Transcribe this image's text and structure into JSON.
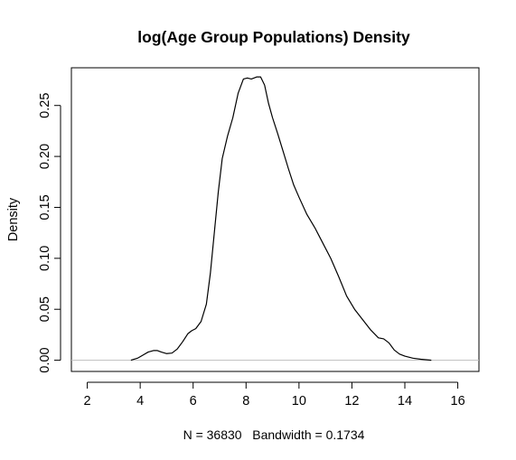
{
  "chart_data": {
    "type": "line",
    "title": "log(Age Group Populations) Density",
    "xlabel": "N = 36830   Bandwidth = 0.1734",
    "ylabel": "Density",
    "xlim": [
      1.4,
      16.8
    ],
    "ylim": [
      -0.011,
      0.287
    ],
    "x_ticks": [
      2,
      4,
      6,
      8,
      10,
      12,
      14,
      16
    ],
    "x_tick_labels": [
      "2",
      "4",
      "6",
      "8",
      "10",
      "12",
      "14",
      "16"
    ],
    "y_ticks": [
      0,
      0.05,
      0.1,
      0.15,
      0.2,
      0.25
    ],
    "y_tick_labels": [
      "0.00",
      "0.05",
      "0.10",
      "0.15",
      "0.20",
      "0.25"
    ],
    "baseline_y": 0,
    "grid": false,
    "legend": "none",
    "series": [
      {
        "x": [
          3.65,
          3.9,
          4.1,
          4.3,
          4.5,
          4.65,
          4.8,
          5.0,
          5.2,
          5.4,
          5.6,
          5.8,
          5.95,
          6.1,
          6.3,
          6.5,
          6.65,
          6.8,
          6.95,
          7.1,
          7.3,
          7.5,
          7.7,
          7.9,
          8.05,
          8.2,
          8.4,
          8.55,
          8.7,
          8.85,
          9.0,
          9.2,
          9.4,
          9.6,
          9.8,
          10.0,
          10.3,
          10.6,
          10.9,
          11.2,
          11.5,
          11.8,
          12.1,
          12.4,
          12.7,
          13.0,
          13.2,
          13.4,
          13.6,
          13.8,
          14.0,
          14.3,
          14.6,
          15.0
        ],
        "y": [
          0.0,
          0.002,
          0.005,
          0.008,
          0.0095,
          0.0095,
          0.008,
          0.0065,
          0.007,
          0.011,
          0.018,
          0.026,
          0.029,
          0.031,
          0.038,
          0.055,
          0.085,
          0.125,
          0.165,
          0.198,
          0.22,
          0.238,
          0.262,
          0.276,
          0.277,
          0.276,
          0.278,
          0.278,
          0.27,
          0.252,
          0.238,
          0.222,
          0.205,
          0.188,
          0.172,
          0.16,
          0.143,
          0.13,
          0.115,
          0.1,
          0.082,
          0.063,
          0.05,
          0.04,
          0.03,
          0.022,
          0.021,
          0.017,
          0.01,
          0.006,
          0.004,
          0.002,
          0.001,
          0.0
        ]
      }
    ],
    "colors": {
      "line": "#000000",
      "baseline": "#bebebe",
      "frame": "#000000"
    }
  }
}
